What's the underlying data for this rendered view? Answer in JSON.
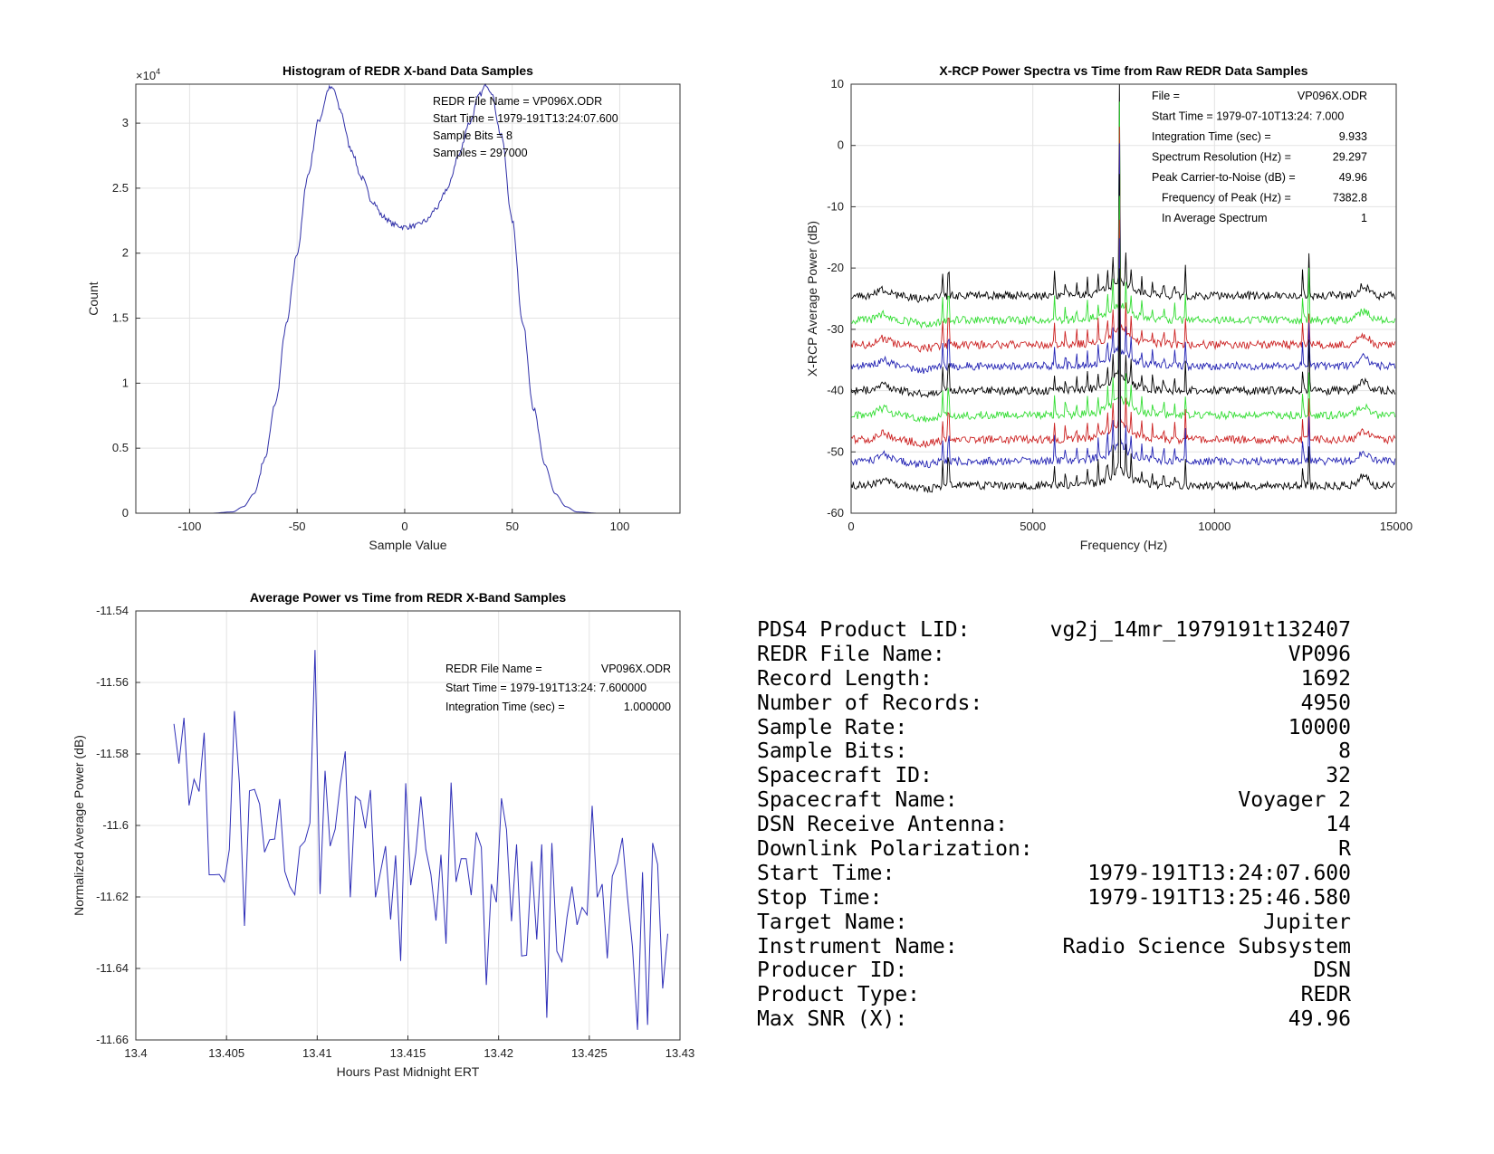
{
  "chart_data": [
    {
      "type": "line",
      "title": "Histogram of REDR X-band Data Samples",
      "xlabel": "Sample Value",
      "ylabel": "Count",
      "y_exponent_label": "×10",
      "y_exponent": "4",
      "xlim": [
        -125,
        128
      ],
      "ylim": [
        0,
        3.3
      ],
      "xticks": [
        -100,
        -50,
        0,
        50,
        100
      ],
      "xtick_labels": [
        "-100",
        "-50",
        "0",
        "50",
        "100"
      ],
      "yticks": [
        0,
        0.5,
        1,
        1.5,
        2,
        2.5,
        3
      ],
      "ytick_labels": [
        "0",
        "0.5",
        "1",
        "1.5",
        "2",
        "2.5",
        "3"
      ],
      "grid": true,
      "color": "#3030a8",
      "x": [
        -90,
        -80,
        -75,
        -70,
        -65,
        -60,
        -55,
        -50,
        -45,
        -40,
        -35,
        -33,
        -30,
        -25,
        -20,
        -15,
        -10,
        -5,
        0,
        5,
        10,
        15,
        20,
        25,
        30,
        35,
        38,
        40,
        45,
        50,
        55,
        60,
        65,
        70,
        75,
        80,
        90
      ],
      "values": [
        0,
        0.01,
        0.05,
        0.15,
        0.42,
        0.85,
        1.45,
        2.0,
        2.6,
        3.02,
        3.27,
        3.26,
        3.1,
        2.8,
        2.58,
        2.4,
        2.28,
        2.22,
        2.2,
        2.21,
        2.25,
        2.35,
        2.5,
        2.75,
        3.0,
        3.22,
        3.3,
        3.25,
        2.9,
        2.25,
        1.45,
        0.8,
        0.38,
        0.15,
        0.05,
        0.01,
        0
      ],
      "annotations": [
        "REDR File Name = VP096X.ODR",
        "Start Time = 1979-191T13:24:07.600",
        "Sample Bits = 8",
        "Samples = 297000"
      ]
    },
    {
      "type": "line",
      "title": "X-RCP Power Spectra vs Time from Raw REDR Data Samples",
      "xlabel": "Frequency (Hz)",
      "ylabel": "X-RCP Average Power (dB)",
      "xlim": [
        0,
        15000
      ],
      "ylim": [
        -60,
        10
      ],
      "xticks": [
        0,
        5000,
        10000,
        15000
      ],
      "xtick_labels": [
        "0",
        "5000",
        "10000",
        "15000"
      ],
      "yticks": [
        -60,
        -50,
        -40,
        -30,
        -20,
        -10,
        0,
        10
      ],
      "ytick_labels": [
        "-60",
        "-50",
        "-40",
        "-30",
        "-20",
        "-10",
        "0",
        "10"
      ],
      "grid": true,
      "resolution_hz": 29.297,
      "series": [
        {
          "name": "spectrum 1",
          "color": "#000000",
          "baseline_db": -24.5
        },
        {
          "name": "spectrum 2",
          "color": "#33dd33",
          "baseline_db": -28.5
        },
        {
          "name": "spectrum 3",
          "color": "#cc2222",
          "baseline_db": -32.5
        },
        {
          "name": "spectrum 4",
          "color": "#2424b4",
          "baseline_db": -36
        },
        {
          "name": "spectrum 5",
          "color": "#000000",
          "baseline_db": -40
        },
        {
          "name": "spectrum 6",
          "color": "#33dd33",
          "baseline_db": -44
        },
        {
          "name": "spectrum 7",
          "color": "#cc2222",
          "baseline_db": -48
        },
        {
          "name": "spectrum 8",
          "color": "#2424b4",
          "baseline_db": -51.5
        },
        {
          "name": "spectrum 9",
          "color": "#000000",
          "baseline_db": -55.5
        }
      ],
      "peaks_hz": [
        {
          "f": 7382.8,
          "rise_db": 33
        },
        {
          "f": 2520,
          "rise_db": 4
        },
        {
          "f": 2680,
          "rise_db": 7
        },
        {
          "f": 12430,
          "rise_db": 4
        },
        {
          "f": 12600,
          "rise_db": 7
        },
        {
          "f": 5600,
          "rise_db": 4
        },
        {
          "f": 9200,
          "rise_db": 4
        },
        {
          "f": 7050,
          "rise_db": 4
        },
        {
          "f": 7200,
          "rise_db": 5
        },
        {
          "f": 7560,
          "rise_db": 5
        },
        {
          "f": 7700,
          "rise_db": 4
        },
        {
          "f": 5900,
          "rise_db": 2.5
        },
        {
          "f": 6200,
          "rise_db": 2.5
        },
        {
          "f": 6500,
          "rise_db": 2.5
        },
        {
          "f": 6800,
          "rise_db": 3
        },
        {
          "f": 8000,
          "rise_db": 2.5
        },
        {
          "f": 8300,
          "rise_db": 2.5
        },
        {
          "f": 8600,
          "rise_db": 2.5
        },
        {
          "f": 8900,
          "rise_db": 2.5
        }
      ],
      "annotations": [
        {
          "label": "File =",
          "value": "VP096X.ODR"
        },
        {
          "label": "Start Time = 1979-07-10T13:24: 7.000",
          "value": ""
        },
        {
          "label": "Integration Time (sec) =",
          "value": "9.933"
        },
        {
          "label": "Spectrum Resolution (Hz) =",
          "value": "29.297"
        },
        {
          "label": "Peak Carrier-to-Noise (dB) =",
          "value": "49.96"
        },
        {
          "label": "Frequency of Peak (Hz) =",
          "value": "7382.8"
        },
        {
          "label": "In Average Spectrum",
          "value": "1"
        }
      ]
    },
    {
      "type": "line",
      "title": "Average Power vs Time from REDR X-Band Samples",
      "xlabel": "Hours Past Midnight ERT",
      "ylabel": "Normalized Average Power (dB)",
      "xlim": [
        13.4,
        13.43
      ],
      "ylim": [
        -11.66,
        -11.54
      ],
      "xticks": [
        13.4,
        13.405,
        13.41,
        13.415,
        13.42,
        13.425,
        13.43
      ],
      "xtick_labels": [
        "13.4",
        "13.405",
        "13.41",
        "13.415",
        "13.42",
        "13.425",
        "13.43"
      ],
      "yticks": [
        -11.66,
        -11.64,
        -11.62,
        -11.6,
        -11.58,
        -11.56,
        -11.54
      ],
      "ytick_labels": [
        "-11.66",
        "-11.64",
        "-11.62",
        "-11.6",
        "-11.58",
        "-11.56",
        "-11.54"
      ],
      "grid": true,
      "color": "#3030b8",
      "x_start": 13.4021,
      "x_step": 0.0002778,
      "values": [
        -11.5716,
        -11.5827,
        -11.5699,
        -11.5944,
        -11.5871,
        -11.5905,
        -11.5741,
        -11.6138,
        -11.6138,
        -11.6137,
        -11.6158,
        -11.6067,
        -11.568,
        -11.5882,
        -11.6281,
        -11.5903,
        -11.5899,
        -11.594,
        -11.6075,
        -11.604,
        -11.6038,
        -11.5926,
        -11.6128,
        -11.6171,
        -11.6194,
        -11.606,
        -11.6044,
        -11.5993,
        -11.5509,
        -11.6192,
        -11.5847,
        -11.6058,
        -11.601,
        -11.5887,
        -11.5793,
        -11.6201,
        -11.5919,
        -11.5931,
        -11.6008,
        -11.5901,
        -11.6201,
        -11.6131,
        -11.6058,
        -11.6263,
        -11.6084,
        -11.6379,
        -11.5882,
        -11.6167,
        -11.6077,
        -11.5919,
        -11.6067,
        -11.6137,
        -11.6266,
        -11.6082,
        -11.6331,
        -11.588,
        -11.6158,
        -11.6093,
        -11.6093,
        -11.6195,
        -11.6019,
        -11.6061,
        -11.6446,
        -11.6164,
        -11.6215,
        -11.5924,
        -11.6012,
        -11.6268,
        -11.6053,
        -11.6365,
        -11.6363,
        -11.61,
        -11.6319,
        -11.6053,
        -11.6538,
        -11.6049,
        -11.6352,
        -11.6381,
        -11.6257,
        -11.6171,
        -11.6278,
        -11.6229,
        -11.625,
        -11.5945,
        -11.6201,
        -11.6164,
        -11.6372,
        -11.6142,
        -11.6105,
        -11.6035,
        -11.6197,
        -11.634,
        -11.6572,
        -11.6131,
        -11.6558,
        -11.6049,
        -11.6109,
        -11.6456,
        -11.6303
      ],
      "annotations": [
        {
          "label": "REDR File Name =",
          "value": "VP096X.ODR"
        },
        {
          "label": "Start Time = 1979-191T13:24: 7.600000",
          "value": ""
        },
        {
          "label": "Integration Time (sec) =",
          "value": "1.000000"
        }
      ]
    }
  ],
  "info_table": [
    {
      "label": "PDS4 Product LID:",
      "value": "vg2j_14mr_1979191t132407"
    },
    {
      "label": "REDR File Name:",
      "value": "VP096"
    },
    {
      "label": "Record Length:",
      "value": "1692"
    },
    {
      "label": "Number of Records:",
      "value": "4950"
    },
    {
      "label": "Sample Rate:",
      "value": "10000"
    },
    {
      "label": "Sample Bits:",
      "value": "8"
    },
    {
      "label": "Spacecraft ID:",
      "value": "32"
    },
    {
      "label": "Spacecraft Name:",
      "value": "Voyager 2"
    },
    {
      "label": "DSN Receive Antenna:",
      "value": "14"
    },
    {
      "label": "Downlink Polarization:",
      "value": "R"
    },
    {
      "label": "Start Time:",
      "value": "1979-191T13:24:07.600"
    },
    {
      "label": "Stop Time:",
      "value": "1979-191T13:25:46.580"
    },
    {
      "label": "Target Name:",
      "value": "Jupiter"
    },
    {
      "label": "Instrument Name:",
      "value": "Radio Science Subsystem"
    },
    {
      "label": "Producer ID:",
      "value": "DSN"
    },
    {
      "label": "Product Type:",
      "value": "REDR"
    },
    {
      "label": "Max SNR (X):",
      "value": "49.96"
    }
  ]
}
